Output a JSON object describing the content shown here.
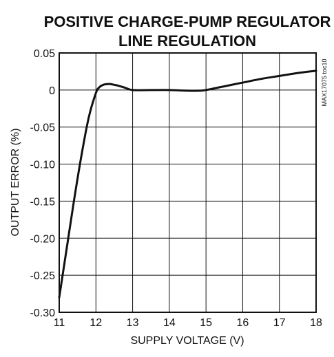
{
  "chart_data": {
    "type": "line",
    "title_lines": [
      "POSITIVE CHARGE-PUMP REGULATOR",
      "LINE REGULATION"
    ],
    "xlabel": "SUPPLY VOLTAGE (V)",
    "ylabel": "OUTPUT ERROR (%)",
    "figure_code": "MAX17075 toc10",
    "xlim": [
      11,
      18
    ],
    "ylim": [
      -0.3,
      0.05
    ],
    "x_ticks": [
      11,
      12,
      13,
      14,
      15,
      16,
      17,
      18
    ],
    "x_tick_labels": [
      "11",
      "12",
      "13",
      "14",
      "15",
      "16",
      "17",
      "18"
    ],
    "y_ticks": [
      0.05,
      0,
      -0.05,
      -0.1,
      -0.15,
      -0.2,
      -0.25,
      -0.3
    ],
    "y_tick_labels": [
      "0.05",
      "0",
      "-0.05",
      "-0.10",
      "-0.15",
      "-0.20",
      "-0.25",
      "-0.30"
    ],
    "grid": true,
    "series": [
      {
        "x": [
          11.0,
          11.2,
          11.4,
          11.6,
          11.8,
          12.0,
          12.1,
          12.2,
          12.3,
          12.4,
          12.5,
          12.6,
          12.8,
          13.0,
          13.5,
          14.0,
          14.5,
          14.8,
          15.0,
          15.5,
          16.0,
          16.5,
          17.0,
          17.5,
          18.0
        ],
        "y": [
          -0.28,
          -0.215,
          -0.15,
          -0.09,
          -0.038,
          -0.004,
          0.004,
          0.007,
          0.008,
          0.008,
          0.007,
          0.006,
          0.003,
          0.0,
          0.0,
          0.0,
          -0.001,
          -0.001,
          0.0,
          0.005,
          0.01,
          0.015,
          0.019,
          0.023,
          0.026
        ]
      }
    ]
  }
}
